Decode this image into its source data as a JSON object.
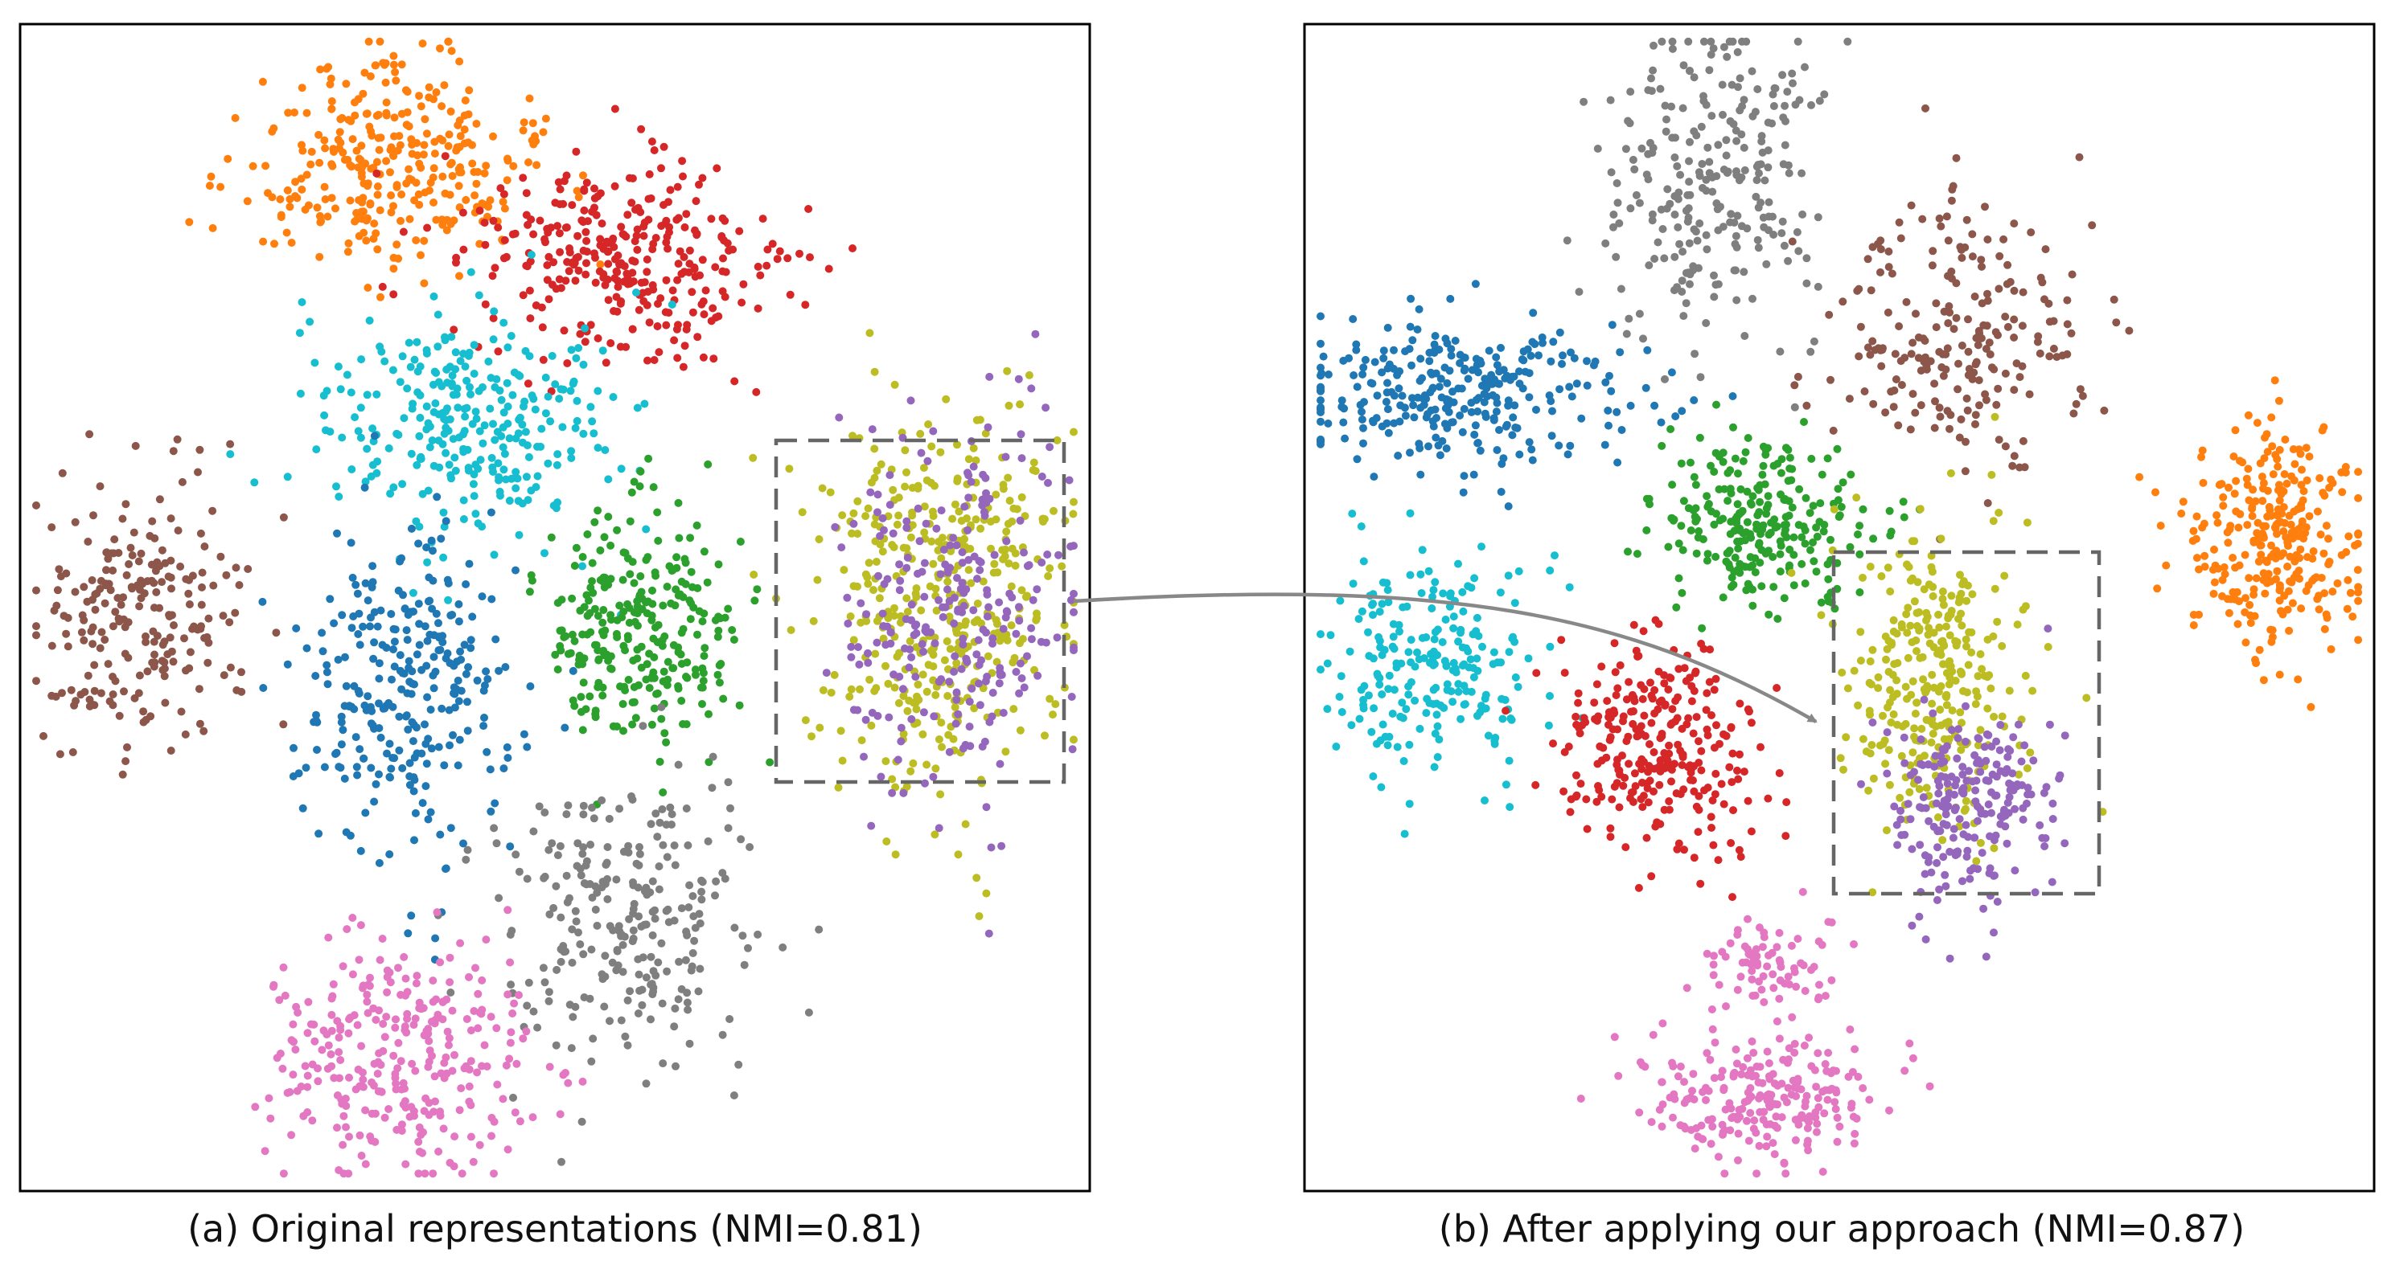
{
  "chart_data": [
    {
      "type": "scatter",
      "title": "",
      "caption": "(a) Original representations (NMI=0.81)",
      "grid": false,
      "axes_ticks": false,
      "clusters": [
        {
          "color": "#ff7f0e",
          "center": [
            0.34,
            0.88
          ],
          "spread": [
            0.07,
            0.045
          ],
          "n": 320
        },
        {
          "color": "#d62728",
          "center": [
            0.565,
            0.795
          ],
          "spread": [
            0.075,
            0.045
          ],
          "n": 330
        },
        {
          "color": "#17becf",
          "center": [
            0.42,
            0.66
          ],
          "spread": [
            0.07,
            0.055
          ],
          "n": 300
        },
        {
          "color": "#bcbd22",
          "center": [
            0.86,
            0.51
          ],
          "spread": [
            0.06,
            0.085
          ],
          "n": 420
        },
        {
          "color": "#9467bd",
          "center": [
            0.875,
            0.5
          ],
          "spread": [
            0.055,
            0.08
          ],
          "n": 260
        },
        {
          "color": "#8c564b",
          "center": [
            0.11,
            0.49
          ],
          "spread": [
            0.05,
            0.06
          ],
          "n": 230
        },
        {
          "color": "#1f77b4",
          "center": [
            0.355,
            0.43
          ],
          "spread": [
            0.05,
            0.07
          ],
          "n": 290
        },
        {
          "color": "#2ca02c",
          "center": [
            0.58,
            0.48
          ],
          "spread": [
            0.045,
            0.05
          ],
          "n": 280
        },
        {
          "color": "#7f7f7f",
          "center": [
            0.57,
            0.23
          ],
          "spread": [
            0.06,
            0.06
          ],
          "n": 260
        },
        {
          "color": "#e377c2",
          "center": [
            0.36,
            0.11
          ],
          "spread": [
            0.065,
            0.05
          ],
          "n": 300
        }
      ],
      "highlight_box": "dashed-gray"
    },
    {
      "type": "scatter",
      "title": "",
      "caption": "(b) After applying our approach (NMI=0.87)",
      "grid": false,
      "axes_ticks": false,
      "clusters": [
        {
          "color": "#7f7f7f",
          "center": [
            0.38,
            0.87
          ],
          "spread": [
            0.05,
            0.07
          ],
          "n": 260
        },
        {
          "color": "#8c564b",
          "center": [
            0.61,
            0.74
          ],
          "spread": [
            0.06,
            0.06
          ],
          "n": 220
        },
        {
          "color": "#1f77b4",
          "center": [
            0.15,
            0.68
          ],
          "spread": [
            0.09,
            0.03
          ],
          "n": 300
        },
        {
          "color": "#2ca02c",
          "center": [
            0.42,
            0.57
          ],
          "spread": [
            0.05,
            0.035
          ],
          "n": 260
        },
        {
          "color": "#17becf",
          "center": [
            0.12,
            0.45
          ],
          "spread": [
            0.05,
            0.05
          ],
          "n": 230
        },
        {
          "color": "#d62728",
          "center": [
            0.33,
            0.38
          ],
          "spread": [
            0.045,
            0.045
          ],
          "n": 280
        },
        {
          "color": "#ff7f0e",
          "center": [
            0.91,
            0.56
          ],
          "spread": [
            0.04,
            0.05
          ],
          "n": 300
        },
        {
          "color": "#bcbd22",
          "center": [
            0.59,
            0.44
          ],
          "spread": [
            0.04,
            0.065
          ],
          "n": 300
        },
        {
          "color": "#9467bd",
          "center": [
            0.625,
            0.33
          ],
          "spread": [
            0.04,
            0.045
          ],
          "n": 220
        },
        {
          "color": "#e377c2",
          "center": [
            0.43,
            0.19
          ],
          "spread": [
            0.03,
            0.025
          ],
          "n": 80
        },
        {
          "color": "#e377c2",
          "center": [
            0.425,
            0.08
          ],
          "spread": [
            0.055,
            0.025
          ],
          "n": 230
        }
      ],
      "highlight_box": "dashed-gray"
    }
  ],
  "colors": {
    "frame": "#000000",
    "dashed_box": "#666666",
    "arrow": "#888888"
  }
}
